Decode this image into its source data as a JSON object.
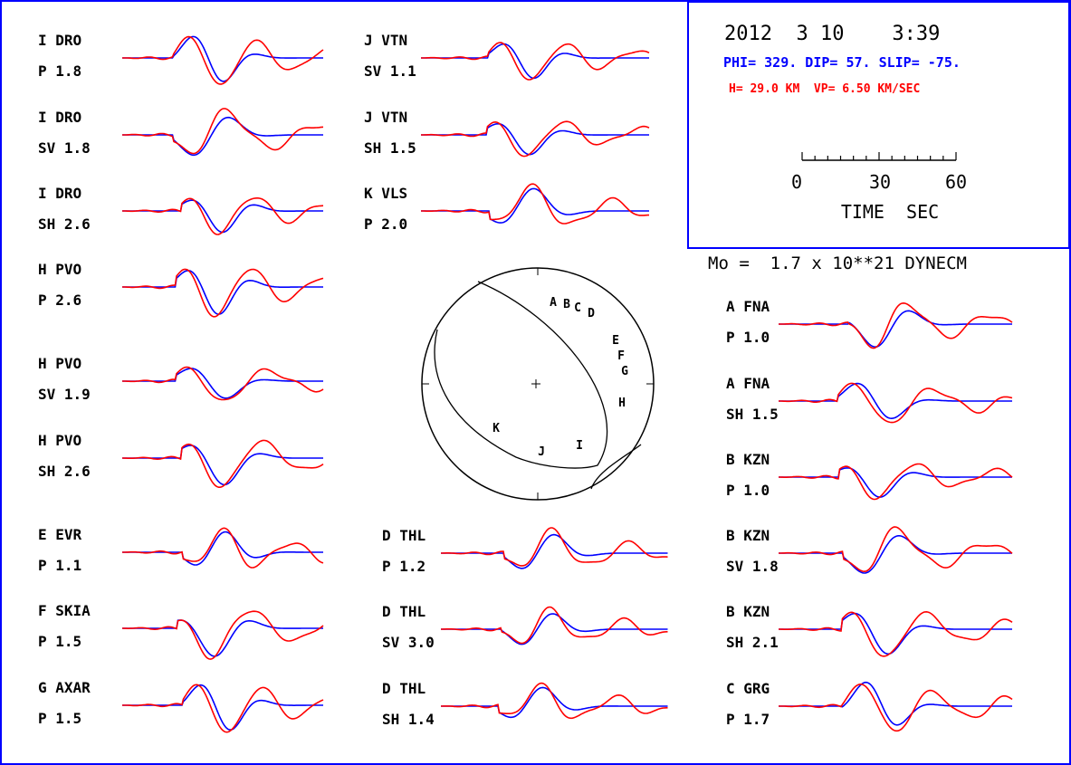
{
  "colors": {
    "frame": "#0000ff",
    "synthetic": "#0000ff",
    "observed": "#ff0000",
    "text": "#000000"
  },
  "header": {
    "date_time": "2012  3 10    3:39",
    "mechanism": "PHI= 329. DIP= 57. SLIP= -75.",
    "depth_velocity": "H= 29.0 KM  VP= 6.50 KM/SEC"
  },
  "time_scale": {
    "ticks": [
      "0",
      "30",
      "60"
    ],
    "label": "TIME  SEC"
  },
  "moment": "Mo =  1.7 x 10**21 DYNECM",
  "beachball": {
    "stations": [
      "A",
      "B",
      "C",
      "D",
      "E",
      "F",
      "G",
      "H",
      "I",
      "J",
      "K"
    ]
  },
  "traces": [
    {
      "station": "I  DRO",
      "component": "P   1.8"
    },
    {
      "station": "I  DRO",
      "component": "SV  1.8"
    },
    {
      "station": "I  DRO",
      "component": "SH  2.6"
    },
    {
      "station": "H  PVO",
      "component": "P   2.6"
    },
    {
      "station": "H  PVO",
      "component": "SV  1.9"
    },
    {
      "station": "H  PVO",
      "component": "SH  2.6"
    },
    {
      "station": "E  EVR",
      "component": "P   1.1"
    },
    {
      "station": "F  SKIA",
      "component": "P   1.5"
    },
    {
      "station": "G  AXAR",
      "component": "P   1.5"
    },
    {
      "station": "J  VTN",
      "component": "SV  1.1"
    },
    {
      "station": "J  VTN",
      "component": "SH  1.5"
    },
    {
      "station": "K  VLS",
      "component": "P   2.0"
    },
    {
      "station": "D  THL",
      "component": "P   1.2"
    },
    {
      "station": "D  THL",
      "component": "SV  3.0"
    },
    {
      "station": "D  THL",
      "component": "SH  1.4"
    },
    {
      "station": "A  FNA",
      "component": "P   1.0"
    },
    {
      "station": "A  FNA",
      "component": "SH  1.5"
    },
    {
      "station": "B  KZN",
      "component": "P   1.0"
    },
    {
      "station": "B  KZN",
      "component": "SV  1.8"
    },
    {
      "station": "B  KZN",
      "component": "SH  2.1"
    },
    {
      "station": "C  GRG",
      "component": "P   1.7"
    }
  ]
}
